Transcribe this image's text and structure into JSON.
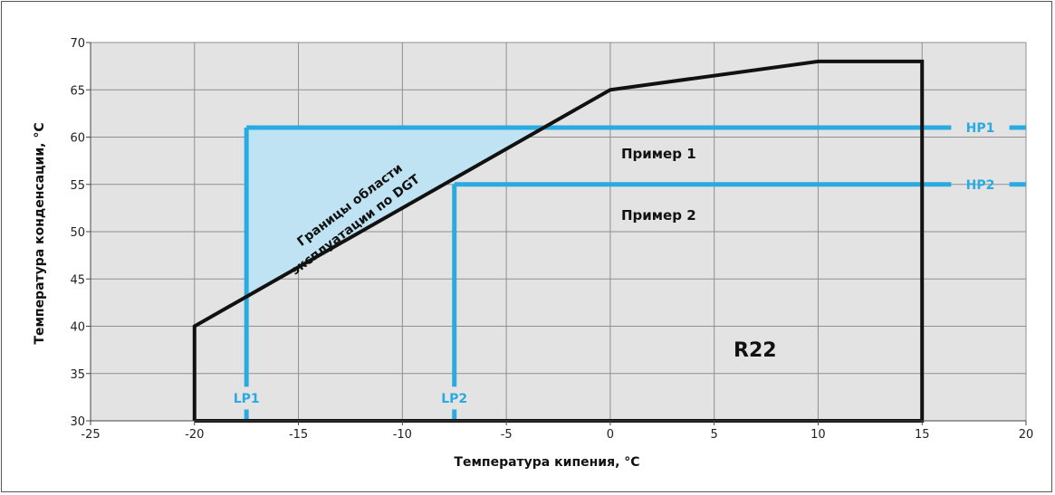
{
  "chart_data": {
    "type": "line",
    "title": "",
    "xlabel": "Температура кипения, °C",
    "ylabel": "Температура конденсации, °C",
    "xlim": [
      -25,
      20
    ],
    "ylim": [
      30,
      70
    ],
    "x_ticks": [
      "-25",
      "-20",
      "-15",
      "-10",
      "-5",
      "0",
      "5",
      "10",
      "15",
      "20"
    ],
    "y_ticks": [
      "30",
      "35",
      "40",
      "45",
      "50",
      "55",
      "60",
      "65",
      "70"
    ],
    "grid": true,
    "colors": {
      "envelope": "#111111",
      "example": "#29abe2",
      "fill": "#bfe3f2",
      "plot_bg": "#e3e3e3",
      "grid": "#8f8f8f"
    },
    "series": [
      {
        "name": "Границы области эксплуатации по DGT",
        "points": [
          [
            -20,
            30
          ],
          [
            -20,
            40
          ],
          [
            0,
            65
          ],
          [
            10,
            68
          ],
          [
            15,
            68
          ],
          [
            15,
            30
          ],
          [
            -20,
            30
          ]
        ]
      }
    ],
    "examples": [
      {
        "name": "Пример 1",
        "lp_label": "LP1",
        "hp_label": "HP1",
        "lp": -17.5,
        "hp": 61
      },
      {
        "name": "Пример 2",
        "lp_label": "LP2",
        "hp_label": "HP2",
        "lp": -7.5,
        "hp": 55
      }
    ],
    "annotations": {
      "envelope_label_line1": "Границы области",
      "envelope_label_line2": "эксплуатации по DGT",
      "refrigerant": "R22"
    }
  }
}
